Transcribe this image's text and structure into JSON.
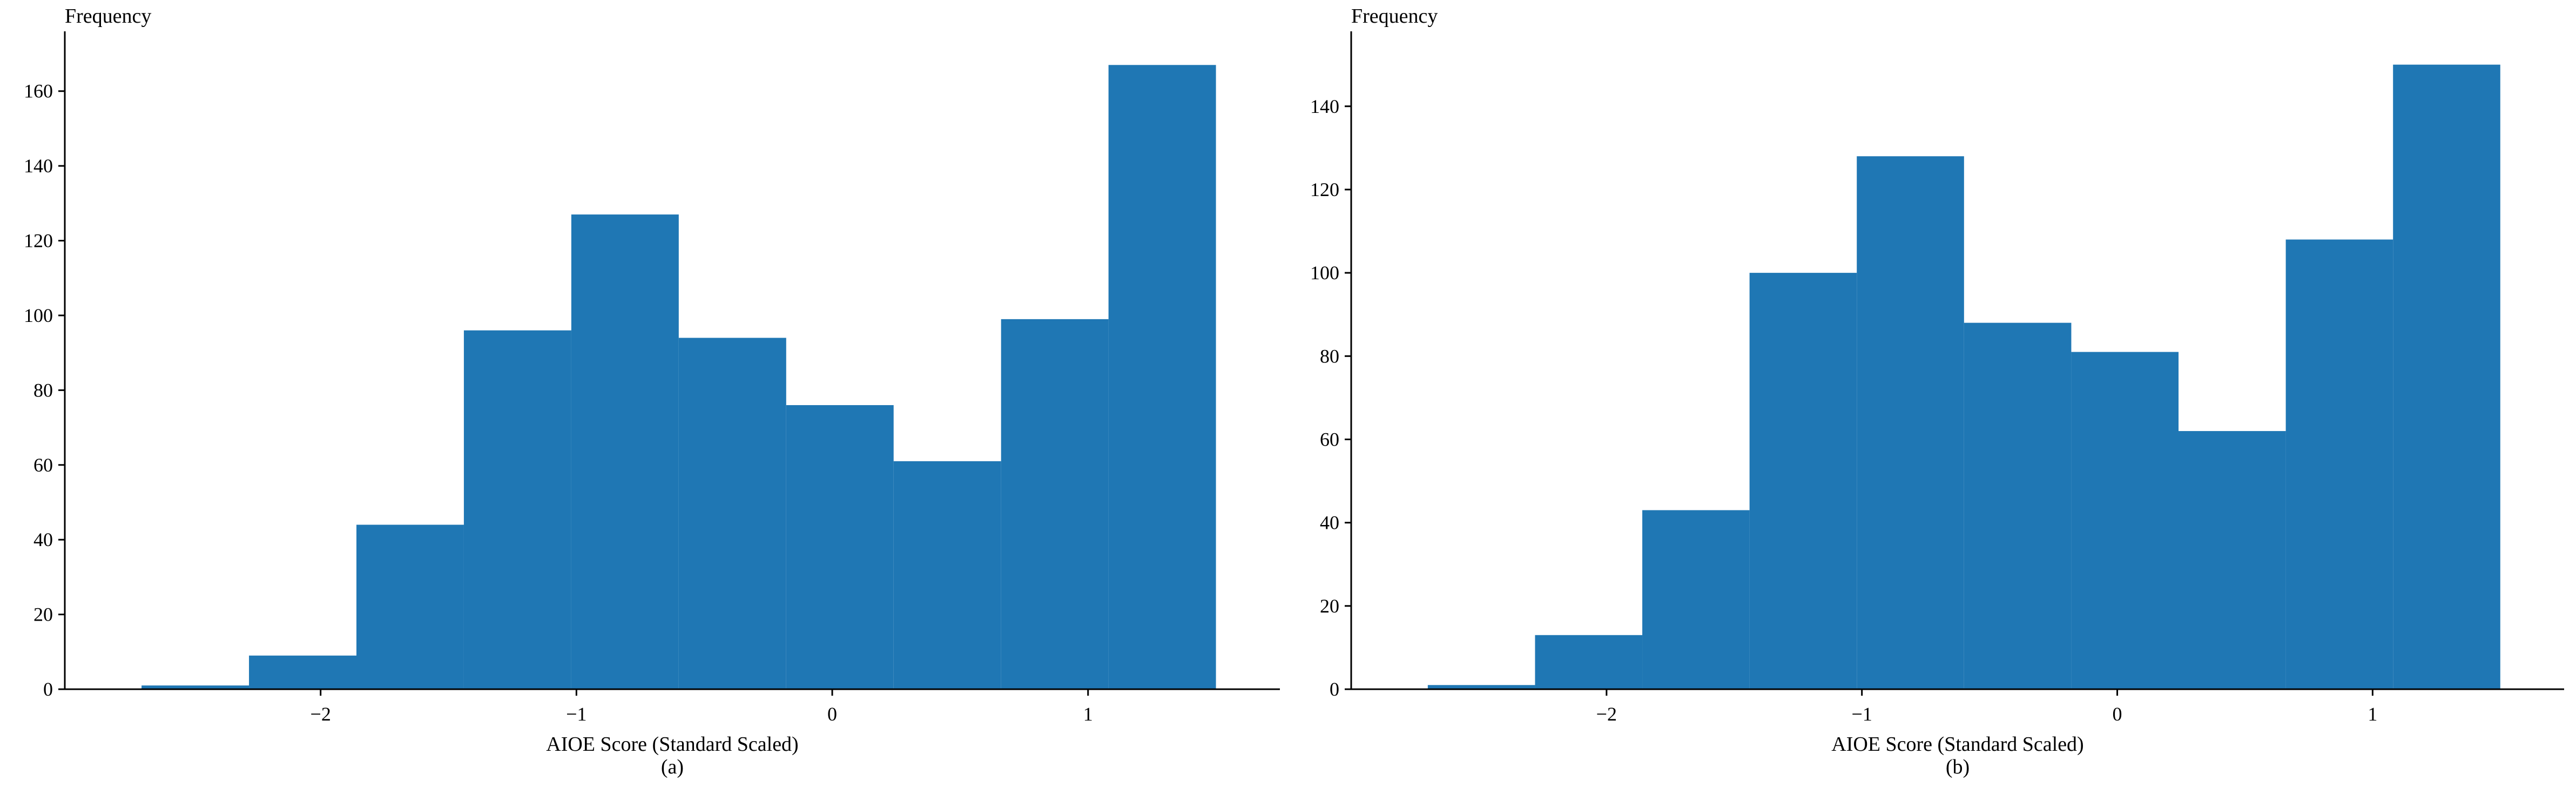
{
  "chart_data": [
    {
      "type": "bar",
      "subtype": "histogram",
      "panel_label": "(a)",
      "xlabel": "AIOE Score (Standard Scaled)",
      "ylabel": "Frequency",
      "bar_color": "#1f77b4",
      "bin_edges": [
        -2.7,
        -2.28,
        -1.86,
        -1.44,
        -1.02,
        -0.6,
        -0.18,
        0.24,
        0.66,
        1.08,
        1.5
      ],
      "values": [
        1,
        9,
        44,
        96,
        127,
        94,
        76,
        61,
        99,
        167
      ],
      "xlim": [
        -3.0,
        1.75
      ],
      "ylim": [
        0,
        176
      ],
      "xticks": [
        -2,
        -1,
        0,
        1
      ],
      "xtick_labels": [
        "−2",
        "−1",
        "0",
        "1"
      ],
      "yticks": [
        0,
        20,
        40,
        60,
        80,
        100,
        120,
        140,
        160
      ],
      "ytick_labels": [
        "0",
        "20",
        "40",
        "60",
        "80",
        "100",
        "120",
        "140",
        "160"
      ],
      "grid": false
    },
    {
      "type": "bar",
      "subtype": "histogram",
      "panel_label": "(b)",
      "xlabel": "AIOE Score (Standard Scaled)",
      "ylabel": "Frequency",
      "bar_color": "#1f77b4",
      "bin_edges": [
        -2.7,
        -2.28,
        -1.86,
        -1.44,
        -1.02,
        -0.6,
        -0.18,
        0.24,
        0.66,
        1.08,
        1.5
      ],
      "values": [
        1,
        13,
        43,
        100,
        128,
        88,
        81,
        62,
        108,
        150
      ],
      "xlim": [
        -3.0,
        1.75
      ],
      "ylim": [
        0,
        158
      ],
      "xticks": [
        -2,
        -1,
        0,
        1
      ],
      "xtick_labels": [
        "−2",
        "−1",
        "0",
        "1"
      ],
      "yticks": [
        0,
        20,
        40,
        60,
        80,
        100,
        120,
        140
      ],
      "ytick_labels": [
        "0",
        "20",
        "40",
        "60",
        "80",
        "100",
        "120",
        "140"
      ],
      "grid": false
    }
  ]
}
